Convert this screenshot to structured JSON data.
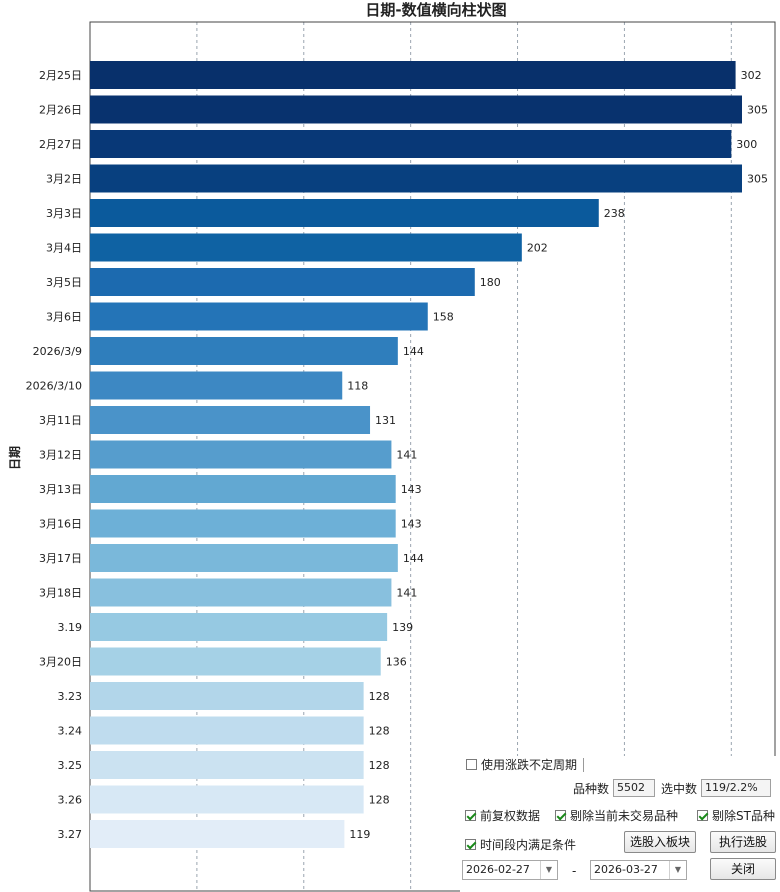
{
  "chart_data": {
    "type": "bar",
    "orientation": "horizontal",
    "title": "日期-数值横向柱状图",
    "xlabel": "",
    "ylabel": "日期",
    "xlim": [
      0,
      320
    ],
    "x_gridlines": [
      50,
      100,
      150,
      200,
      250,
      300
    ],
    "grid": "vertical-dashed",
    "colormap": "Blues (dark at top, light at bottom)",
    "categories": [
      "2月25日",
      "2月26日",
      "2月27日",
      "3月2日",
      "3月3日",
      "3月4日",
      "3月5日",
      "3月6日",
      "2026/3/9",
      "2026/3/10",
      "3月11日",
      "3月12日",
      "3月13日",
      "3月16日",
      "3月17日",
      "3月18日",
      "3.19",
      "3月20日",
      "3.23",
      "3.24",
      "3.25",
      "3.26",
      "3.27"
    ],
    "values": [
      302,
      305,
      300,
      305,
      238,
      202,
      180,
      158,
      144,
      118,
      131,
      141,
      143,
      143,
      144,
      141,
      139,
      136,
      128,
      128,
      128,
      128,
      119
    ],
    "colors": [
      "#08306b",
      "#08326e",
      "#083877",
      "#08407f",
      "#0b5a9c",
      "#0f62a3",
      "#1c6aaf",
      "#2474b7",
      "#2f7ebc",
      "#3d88c3",
      "#4a93c9",
      "#569dcd",
      "#62a8d2",
      "#6db0d7",
      "#7ab8da",
      "#88c0de",
      "#96c9e2",
      "#a5d1e6",
      "#b2d6ea",
      "#bfdcee",
      "#cbe2f1",
      "#d7e8f5",
      "#e2edf8"
    ]
  },
  "panel": {
    "checkbox_volatility_label": "使用涨跌不定周期",
    "count_label": "品种数",
    "count_value": "5502",
    "selected_label": "选中数",
    "selected_value": "119/2.2%",
    "forward_adjust_label": "前复权数据",
    "exclude_untraded_label": "剔除当前未交易品种",
    "exclude_st_label": "剔除ST品种",
    "period_condition_label": "时间段内满足条件",
    "add_to_block_label": "选股入板块",
    "run_select_label": "执行选股",
    "date_from": "2026-02-27",
    "date_to": "2026-03-27",
    "date_separator": "-",
    "close_label": "关闭"
  }
}
